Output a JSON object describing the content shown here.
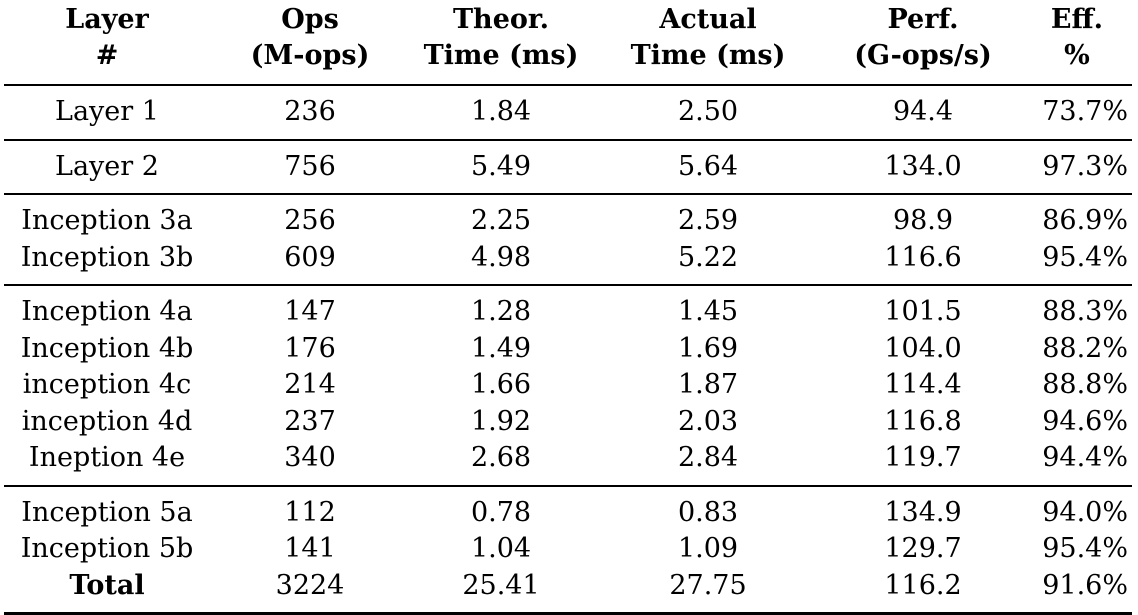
{
  "table": {
    "headers": [
      {
        "line1": "Layer",
        "line2": "#"
      },
      {
        "line1": "Ops",
        "line2": "(M-ops)"
      },
      {
        "line1": "Theor.",
        "line2": "Time (ms)"
      },
      {
        "line1": "Actual",
        "line2": "Time (ms)"
      },
      {
        "line1": "Perf.",
        "line2": "(G-ops/s)"
      },
      {
        "line1": "Eff.",
        "line2": "%"
      }
    ],
    "groups": [
      [
        {
          "name": "Layer 1",
          "ops": "236",
          "theor": "1.84",
          "actual": "2.50",
          "perf": "94.4",
          "eff": "73.7%"
        }
      ],
      [
        {
          "name": "Layer 2",
          "ops": "756",
          "theor": "5.49",
          "actual": "5.64",
          "perf": "134.0",
          "eff": "97.3%"
        }
      ],
      [
        {
          "name": "Inception 3a",
          "ops": "256",
          "theor": "2.25",
          "actual": "2.59",
          "perf": "98.9",
          "eff": "86.9%"
        },
        {
          "name": "Inception 3b",
          "ops": "609",
          "theor": "4.98",
          "actual": "5.22",
          "perf": "116.6",
          "eff": "95.4%"
        }
      ],
      [
        {
          "name": "Inception 4a",
          "ops": "147",
          "theor": "1.28",
          "actual": "1.45",
          "perf": "101.5",
          "eff": "88.3%"
        },
        {
          "name": "Inception 4b",
          "ops": "176",
          "theor": "1.49",
          "actual": "1.69",
          "perf": "104.0",
          "eff": "88.2%"
        },
        {
          "name": "inception 4c",
          "ops": "214",
          "theor": "1.66",
          "actual": "1.87",
          "perf": "114.4",
          "eff": "88.8%"
        },
        {
          "name": "inception 4d",
          "ops": "237",
          "theor": "1.92",
          "actual": "2.03",
          "perf": "116.8",
          "eff": "94.6%"
        },
        {
          "name": "Ineption 4e",
          "ops": "340",
          "theor": "2.68",
          "actual": "2.84",
          "perf": "119.7",
          "eff": "94.4%"
        }
      ],
      [
        {
          "name": "Inception 5a",
          "ops": "112",
          "theor": "0.78",
          "actual": "0.83",
          "perf": "134.9",
          "eff": "94.0%"
        },
        {
          "name": "Inception 5b",
          "ops": "141",
          "theor": "1.04",
          "actual": "1.09",
          "perf": "129.7",
          "eff": "95.4%"
        },
        {
          "name": "Total",
          "ops": "3224",
          "theor": "25.41",
          "actual": "27.75",
          "perf": "116.2",
          "eff": "91.6%"
        }
      ]
    ]
  }
}
